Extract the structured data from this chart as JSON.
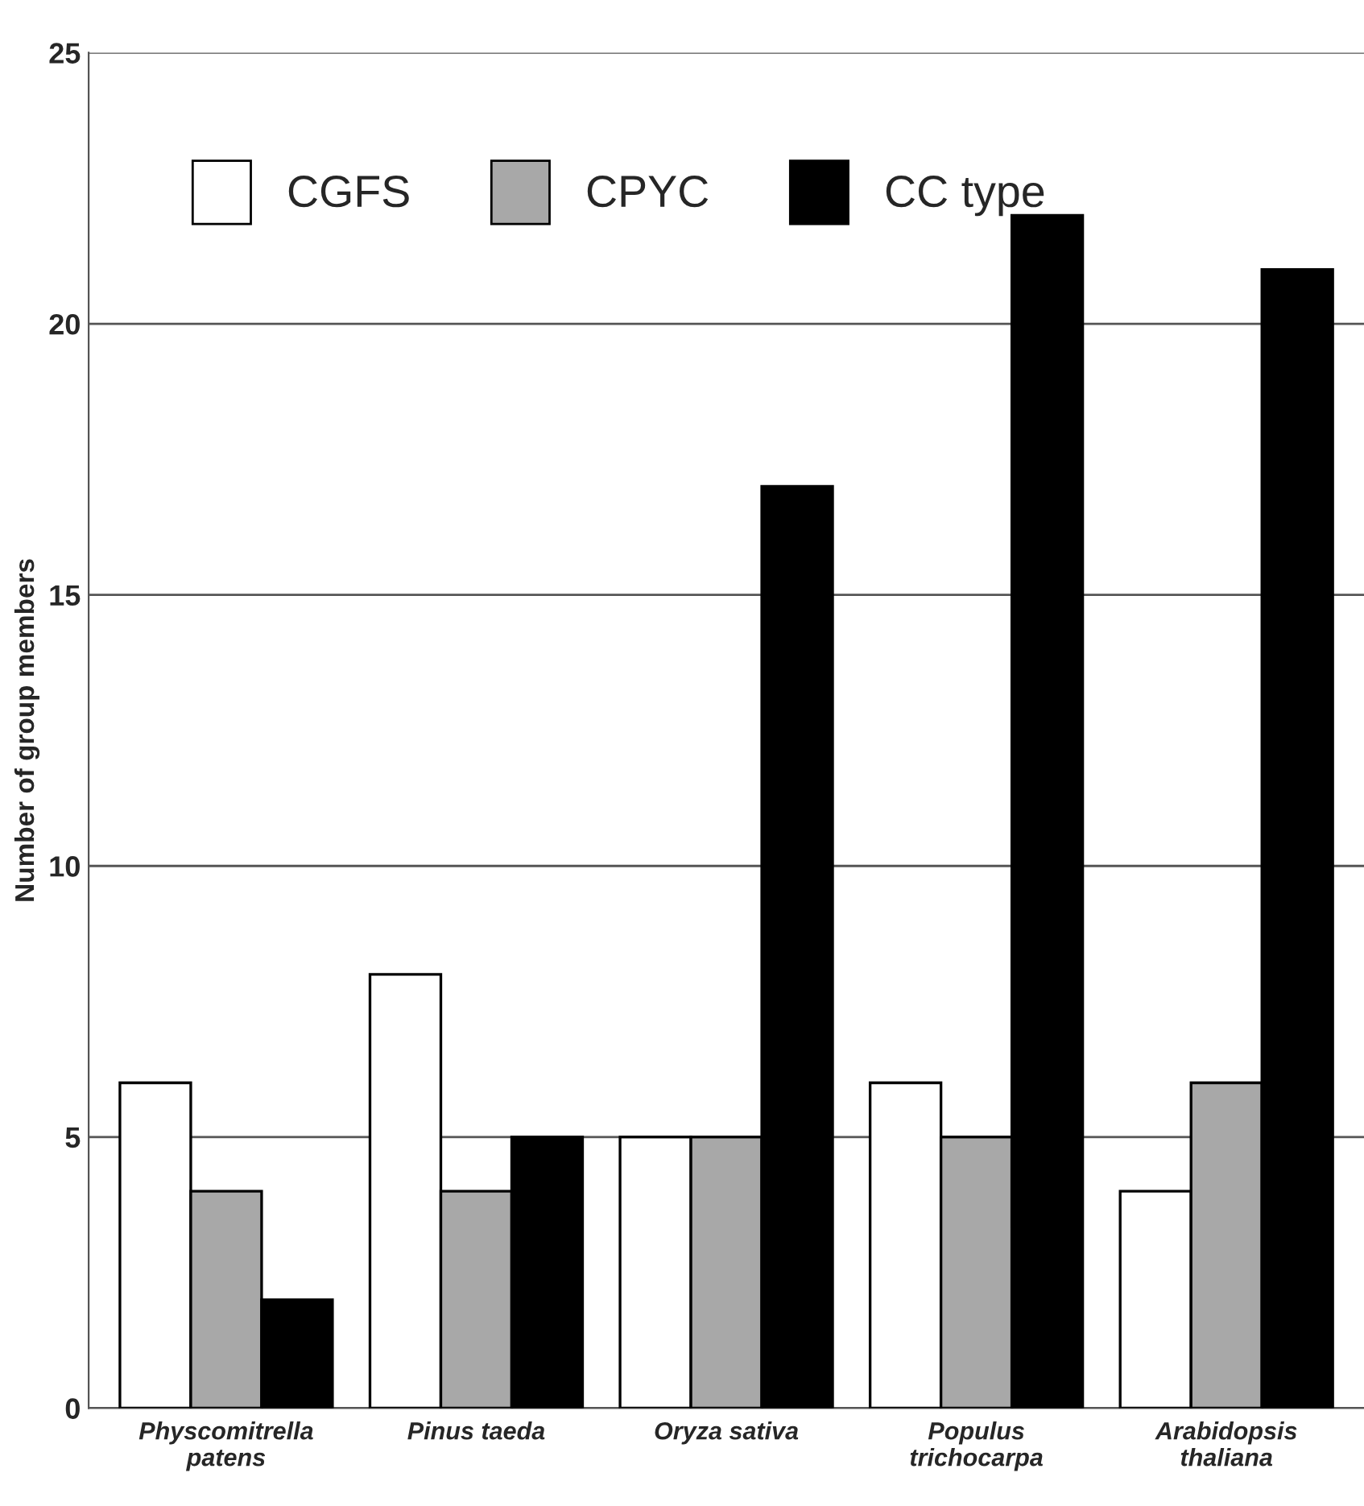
{
  "chart_data": {
    "type": "bar",
    "ylabel": "Number of group members",
    "categories": [
      "Physcomitrella\npatens",
      "Pinus taeda",
      "Oryza sativa",
      "Populus\ntrichocarpa",
      "Arabidopsis\nthaliana"
    ],
    "series": [
      {
        "name": "CGFS",
        "color": "#ffffff",
        "values": [
          6,
          8,
          5,
          6,
          4
        ]
      },
      {
        "name": "CPYC",
        "color": "#a8a8a8",
        "values": [
          4,
          4,
          5,
          5,
          6
        ]
      },
      {
        "name": "CC type",
        "color": "#000000",
        "values": [
          2,
          5,
          17,
          22,
          21
        ]
      }
    ],
    "ylim": [
      0,
      25
    ],
    "yticks": [
      0,
      5,
      10,
      15,
      20,
      25
    ],
    "grid": "y",
    "legend": "top left"
  }
}
